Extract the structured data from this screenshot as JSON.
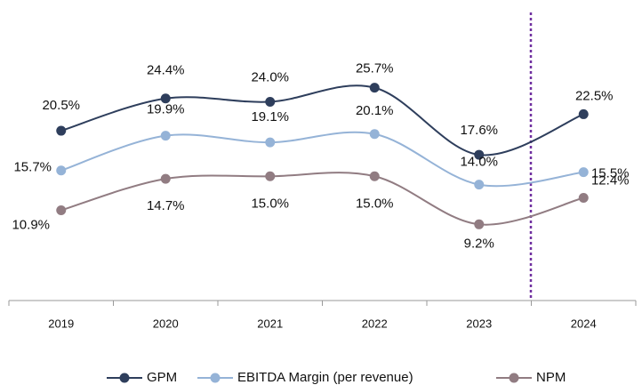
{
  "chart_data": {
    "type": "line",
    "categories": [
      "2019",
      "2020",
      "2021",
      "2022",
      "2023",
      "2024"
    ],
    "ylim": [
      0,
      35
    ],
    "series": [
      {
        "name": "GPM",
        "color": "#2e3e5c",
        "values": [
          20.5,
          24.4,
          24.0,
          25.7,
          17.6,
          22.5
        ],
        "value_labels": [
          "20.5%",
          "24.4%",
          "24.0%",
          "25.7%",
          "17.6%",
          "22.5%"
        ]
      },
      {
        "name": "EBITDA Margin (per revenue)",
        "color": "#95b3d7",
        "values": [
          15.7,
          19.9,
          19.1,
          20.1,
          14.0,
          15.5
        ],
        "value_labels": [
          "15.7%",
          "19.9%",
          "19.1%",
          "20.1%",
          "14.0%",
          "15.5%"
        ]
      },
      {
        "name": "NPM",
        "color": "#917c82",
        "values": [
          10.9,
          14.7,
          15.0,
          15.0,
          9.2,
          12.4
        ],
        "value_labels": [
          "10.9%",
          "14.7%",
          "15.0%",
          "15.0%",
          "9.2%",
          "12.4%"
        ]
      }
    ],
    "legend": "bottom"
  }
}
